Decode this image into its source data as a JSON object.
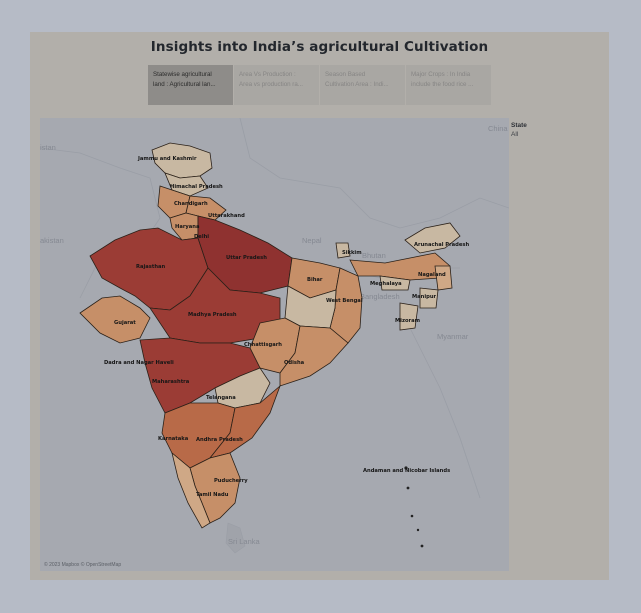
{
  "dashboard": {
    "title": "Insights into India’s agricultural Cultivation",
    "tabs": [
      {
        "line1": "Statewise agricultural",
        "line2": "land : Agricultural lan...",
        "active": true
      },
      {
        "line1": "Area Vs Production :",
        "line2": "Area vs production ra...",
        "active": false
      },
      {
        "line1": "Season Based",
        "line2": "Cultivation Area : Indi...",
        "active": false
      },
      {
        "line1": "Major Crops : In India",
        "line2": "include the food rice ...",
        "active": false
      }
    ]
  },
  "filter": {
    "label": "State",
    "value": "All"
  },
  "map": {
    "attribution": "© 2023 Mapbox © OpenStreetMap",
    "countries": {
      "china": "China",
      "pakistan": "akistan",
      "afghanistan": "istan",
      "nepal": "Nepal",
      "bhutan": "Bhutan",
      "bangladesh": "Bangladesh",
      "myanmar": "Myanmar",
      "sri_lanka": "Sri Lanka"
    },
    "states": {
      "jammu_kashmir": "Jammu and Kashmir",
      "himachal": "Himachal Pradesh",
      "chandigarh": "Chandigarh",
      "uttarakhand": "Uttarakhand",
      "haryana": "Haryana",
      "delhi": "Delhi",
      "rajasthan": "Rajasthan",
      "uttar_pradesh": "Uttar Pradesh",
      "sikkim": "Sikkim",
      "arunachal": "Arunachal Pradesh",
      "bihar": "Bihar",
      "nagaland": "Nagaland",
      "meghalaya": "Meghalaya",
      "manipur": "Manipur",
      "west_bengal": "West Bengal",
      "mizoram": "Mizoram",
      "gujarat": "Gujarat",
      "madhya_pradesh": "Madhya Pradesh",
      "chhattisgarh": "Chhattisgarh",
      "dadra": "Dadra and Nagar Haveli",
      "odisha": "Odisha",
      "maharashtra": "Maharashtra",
      "telangana": "Telangana",
      "karnataka": "Karnataka",
      "andhra": "Andhra Pradesh",
      "andaman": "Andaman and Nicobar Islands",
      "puducherry": "Puducherry",
      "tamil_nadu": "Tamil Nadu"
    },
    "colors": {
      "high": "#9b3c35",
      "upper_mid": "#b86a48",
      "mid": "#c68f68",
      "low": "#cfa886",
      "lowest": "#c8b8a2"
    }
  }
}
